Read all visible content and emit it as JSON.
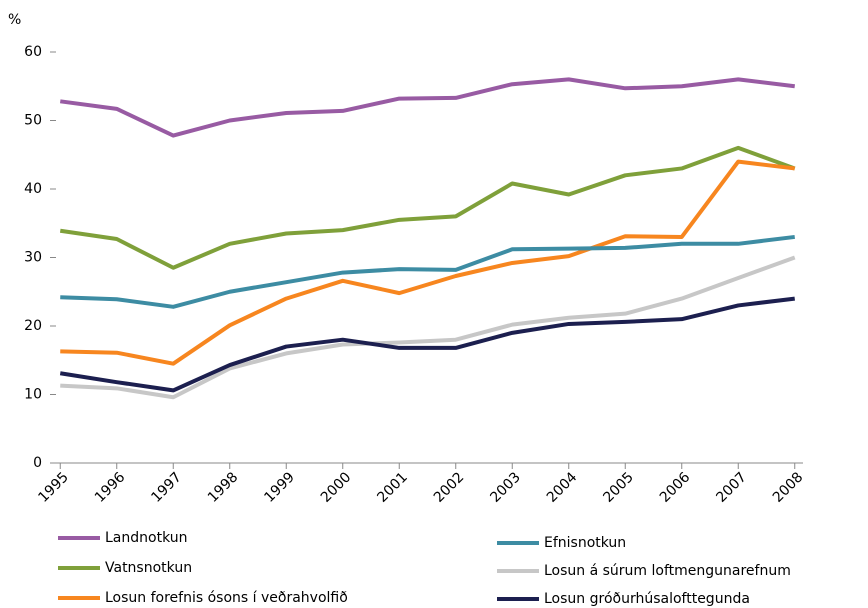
{
  "chart_data": {
    "type": "line",
    "y_label": "%",
    "categories": [
      "1995",
      "1996",
      "1997",
      "1998",
      "1999",
      "2000",
      "2001",
      "2002",
      "2003",
      "2004",
      "2005",
      "2006",
      "2007",
      "2008"
    ],
    "series": [
      {
        "name": "Landnotkun",
        "color": "#985ba3",
        "values": [
          52.8,
          51.7,
          47.8,
          50,
          51.1,
          51.4,
          53.2,
          53.3,
          55.3,
          56,
          54.7,
          55,
          56,
          55
        ]
      },
      {
        "name": "Vatnsnotkun",
        "color": "#7fa03a",
        "values": [
          33.9,
          32.7,
          28.5,
          32,
          33.5,
          34,
          35.5,
          36,
          40.8,
          39.2,
          42,
          43,
          46,
          43
        ]
      },
      {
        "name": "Losun forefnis ósons í veðrahvolfið",
        "color": "#f7861f",
        "values": [
          16.3,
          16.1,
          14.5,
          20.1,
          24,
          26.6,
          24.8,
          27.3,
          29.2,
          30.2,
          33.1,
          33,
          44,
          43
        ]
      },
      {
        "name": "Efnisnotkun",
        "color": "#3d8ca3",
        "values": [
          24.2,
          23.9,
          22.8,
          25,
          26.4,
          27.8,
          28.3,
          28.2,
          31.2,
          31.3,
          31.4,
          32,
          32,
          33
        ]
      },
      {
        "name": "Losun á súrum loftmengunarefnum",
        "color": "#c7c7c7",
        "values": [
          11.3,
          10.9,
          9.6,
          13.8,
          16,
          17.3,
          17.6,
          18,
          20.2,
          21.2,
          21.8,
          24,
          27,
          30
        ]
      },
      {
        "name": "Losun gróðurhúsalofttegunda",
        "color": "#1c1f4f",
        "values": [
          13.1,
          11.8,
          10.6,
          14.3,
          17,
          18,
          16.8,
          16.8,
          19,
          20.3,
          20.6,
          21,
          23,
          24
        ]
      }
    ],
    "ylim": [
      0,
      60
    ],
    "yticks": [
      0,
      10,
      20,
      30,
      40,
      50,
      60
    ],
    "grid": false
  }
}
